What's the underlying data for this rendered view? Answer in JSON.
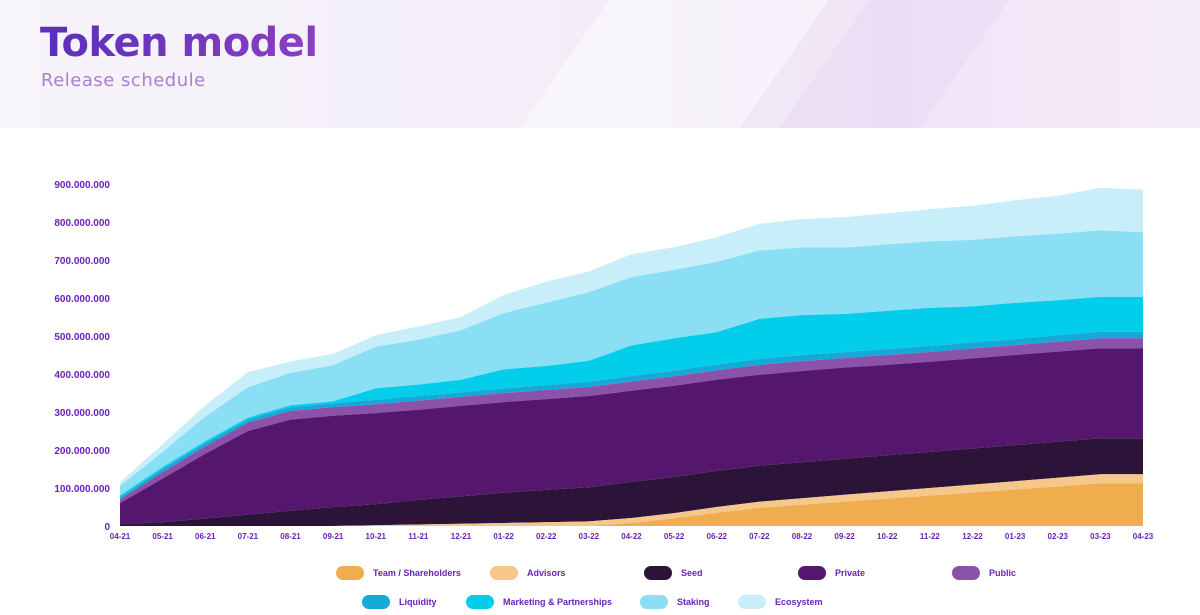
{
  "header": {
    "title": "Token model",
    "subtitle": "Release schedule"
  },
  "chart_data": {
    "type": "area",
    "stacked": true,
    "title": "Token model",
    "subtitle": "Release schedule",
    "categories": [
      "04-21",
      "05-21",
      "06-21",
      "07-21",
      "08-21",
      "09-21",
      "10-21",
      "11-21",
      "12-21",
      "01-22",
      "02-22",
      "03-22",
      "04-22",
      "05-22",
      "06-22",
      "07-22",
      "08-22",
      "09-22",
      "10-22",
      "11-22",
      "12-22",
      "01-23",
      "02-23",
      "03-23",
      "04-23"
    ],
    "y_tick_labels": [
      "0",
      "100.000.000",
      "200.000.000",
      "300.000.000",
      "400.000.000",
      "500.000.000",
      "600.000.000",
      "700.000.000",
      "800.000.000",
      "900.000.000"
    ],
    "ylim": [
      0,
      900000000
    ],
    "grid": false,
    "legend_position": "bottom",
    "series": [
      {
        "name": "Team / Shareholders",
        "color": "#f0ad4e",
        "values": [
          0,
          0,
          0,
          0,
          0,
          0,
          0,
          0,
          0,
          0,
          0,
          0,
          8000000,
          20000000,
          35000000,
          48000000,
          56000000,
          64000000,
          72000000,
          80000000,
          88000000,
          96000000,
          104000000,
          112000000,
          112000000
        ]
      },
      {
        "name": "Advisors",
        "color": "#f5c78a",
        "values": [
          0,
          0,
          0,
          0,
          0,
          0,
          2000000,
          4000000,
          6000000,
          8000000,
          10000000,
          12000000,
          13000000,
          14000000,
          15000000,
          16000000,
          17000000,
          18000000,
          19000000,
          20000000,
          21000000,
          22000000,
          23000000,
          24000000,
          24000000
        ]
      },
      {
        "name": "Seed",
        "color": "#2b1438",
        "values": [
          5000000,
          10000000,
          20000000,
          30000000,
          40000000,
          50000000,
          55000000,
          65000000,
          72000000,
          80000000,
          85000000,
          90000000,
          95000000,
          95000000,
          95000000,
          95000000,
          95000000,
          95000000,
          95000000,
          95000000,
          95000000,
          95000000,
          95000000,
          95000000,
          95000000
        ]
      },
      {
        "name": "Private",
        "color": "#55166e",
        "values": [
          55000000,
          115000000,
          170000000,
          220000000,
          240000000,
          240000000,
          240000000,
          237000000,
          238000000,
          238000000,
          239000000,
          240000000,
          240000000,
          240000000,
          240000000,
          239000000,
          240000000,
          240000000,
          238000000,
          237000000,
          237000000,
          237000000,
          237000000,
          237000000,
          237000000
        ]
      },
      {
        "name": "Public",
        "color": "#8a52a8",
        "values": [
          10000000,
          17000000,
          20000000,
          22000000,
          23000000,
          23000000,
          23000000,
          24000000,
          24000000,
          24000000,
          24000000,
          24000000,
          24000000,
          25000000,
          25000000,
          26000000,
          26000000,
          25000000,
          26000000,
          26000000,
          26000000,
          26000000,
          26000000,
          26000000,
          26000000
        ]
      },
      {
        "name": "Liquidity",
        "color": "#14a9d8",
        "values": [
          5000000,
          8000000,
          8000000,
          8000000,
          10000000,
          10000000,
          12000000,
          12000000,
          12000000,
          12000000,
          13000000,
          14000000,
          15000000,
          15000000,
          15000000,
          16000000,
          16000000,
          16000000,
          16000000,
          16000000,
          16000000,
          16000000,
          17000000,
          17000000,
          17000000
        ]
      },
      {
        "name": "Marketing & Partnerships",
        "color": "#02cdea",
        "values": [
          5000000,
          5000000,
          5000000,
          5000000,
          5000000,
          5000000,
          30000000,
          30000000,
          33000000,
          50000000,
          50000000,
          55000000,
          80000000,
          85000000,
          85000000,
          105000000,
          105000000,
          100000000,
          100000000,
          100000000,
          95000000,
          95000000,
          92000000,
          92000000,
          92000000
        ]
      },
      {
        "name": "Staking",
        "color": "#8adff4",
        "values": [
          25000000,
          40000000,
          65000000,
          80000000,
          85000000,
          95000000,
          110000000,
          118000000,
          130000000,
          148000000,
          167000000,
          180000000,
          180000000,
          180000000,
          185000000,
          180000000,
          178000000,
          175000000,
          175000000,
          175000000,
          175000000,
          175000000,
          175000000,
          175000000,
          170000000
        ]
      },
      {
        "name": "Ecosystem",
        "color": "#c8eefa",
        "values": [
          10000000,
          20000000,
          30000000,
          40000000,
          30000000,
          30000000,
          30000000,
          35000000,
          35000000,
          48000000,
          55000000,
          55000000,
          60000000,
          60000000,
          65000000,
          70000000,
          75000000,
          80000000,
          82000000,
          85000000,
          90000000,
          95000000,
          100000000,
          112000000,
          112000000
        ]
      }
    ]
  }
}
